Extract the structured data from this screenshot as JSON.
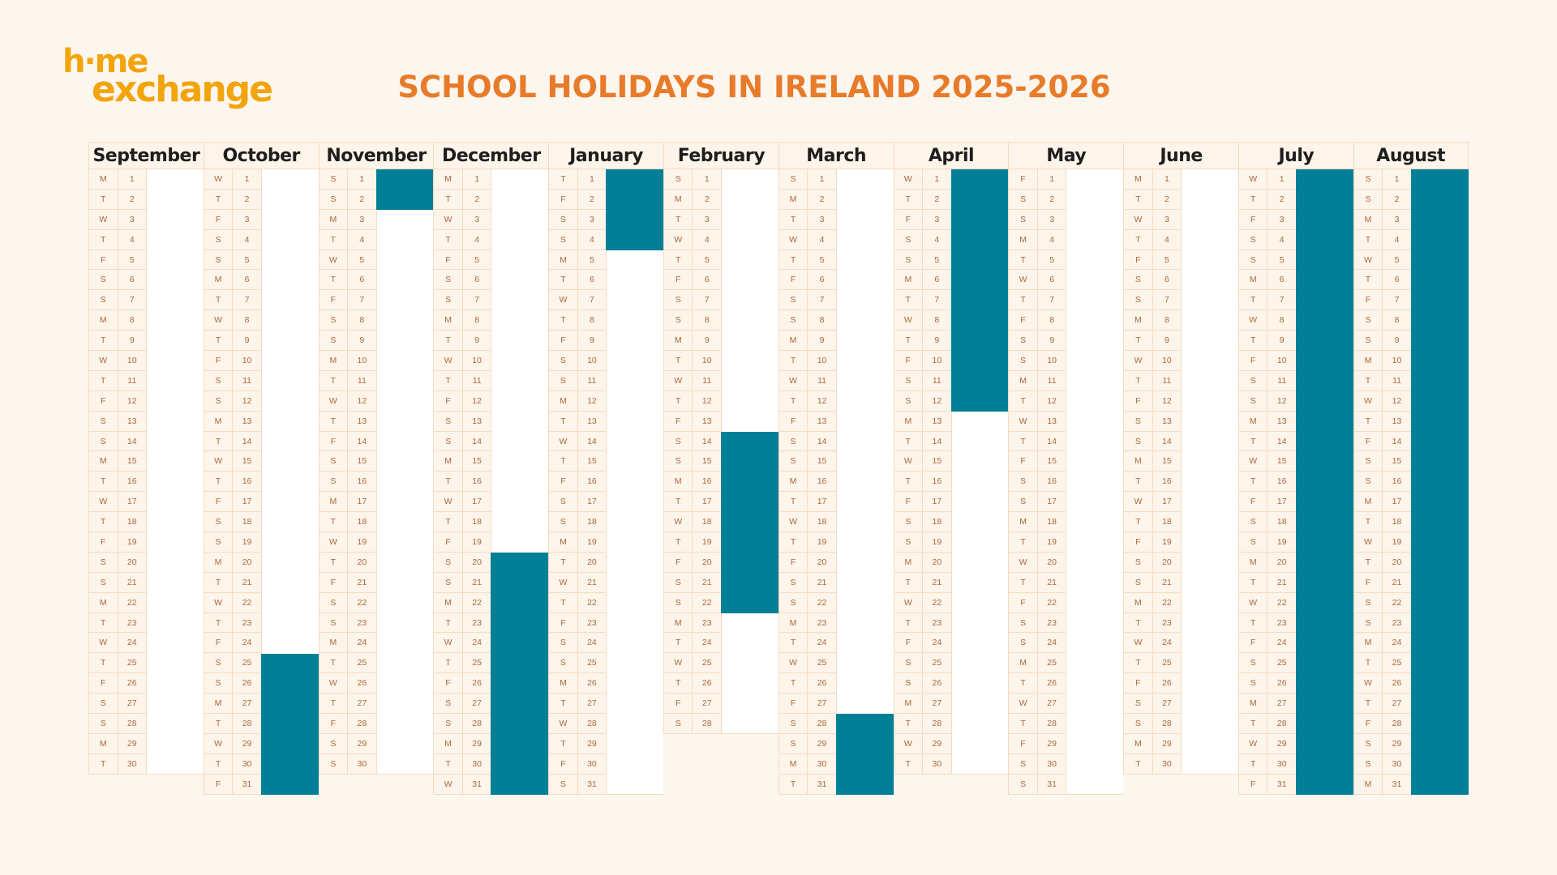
{
  "logo": {
    "line1": "h·me",
    "line2": "exchange"
  },
  "title": "SCHOOL HOLIDAYS IN IRELAND 2025-2026",
  "weekday_letters": [
    "M",
    "T",
    "W",
    "T",
    "F",
    "S",
    "S"
  ],
  "colors": {
    "holiday": "#007f96",
    "title": "#e87b2a",
    "logo": "#f2a40c",
    "background": "#fdf6ee"
  },
  "months": [
    {
      "name": "September",
      "days": 30,
      "start_weekday": 0,
      "holidays": []
    },
    {
      "name": "October",
      "days": 31,
      "start_weekday": 2,
      "holidays": [
        [
          25,
          31
        ]
      ]
    },
    {
      "name": "November",
      "days": 30,
      "start_weekday": 5,
      "holidays": [
        [
          1,
          2
        ]
      ]
    },
    {
      "name": "December",
      "days": 31,
      "start_weekday": 0,
      "holidays": [
        [
          20,
          31
        ]
      ]
    },
    {
      "name": "January",
      "days": 31,
      "start_weekday": 3,
      "holidays": [
        [
          1,
          4
        ]
      ]
    },
    {
      "name": "February",
      "days": 28,
      "start_weekday": 6,
      "holidays": [
        [
          14,
          22
        ]
      ]
    },
    {
      "name": "March",
      "days": 31,
      "start_weekday": 6,
      "holidays": [
        [
          28,
          31
        ]
      ]
    },
    {
      "name": "April",
      "days": 30,
      "start_weekday": 2,
      "holidays": [
        [
          1,
          12
        ]
      ]
    },
    {
      "name": "May",
      "days": 31,
      "start_weekday": 4,
      "holidays": []
    },
    {
      "name": "June",
      "days": 30,
      "start_weekday": 0,
      "holidays": []
    },
    {
      "name": "July",
      "days": 31,
      "start_weekday": 2,
      "holidays": [
        [
          1,
          31
        ]
      ]
    },
    {
      "name": "August",
      "days": 31,
      "start_weekday": 5,
      "holidays": [
        [
          1,
          31
        ]
      ]
    }
  ]
}
